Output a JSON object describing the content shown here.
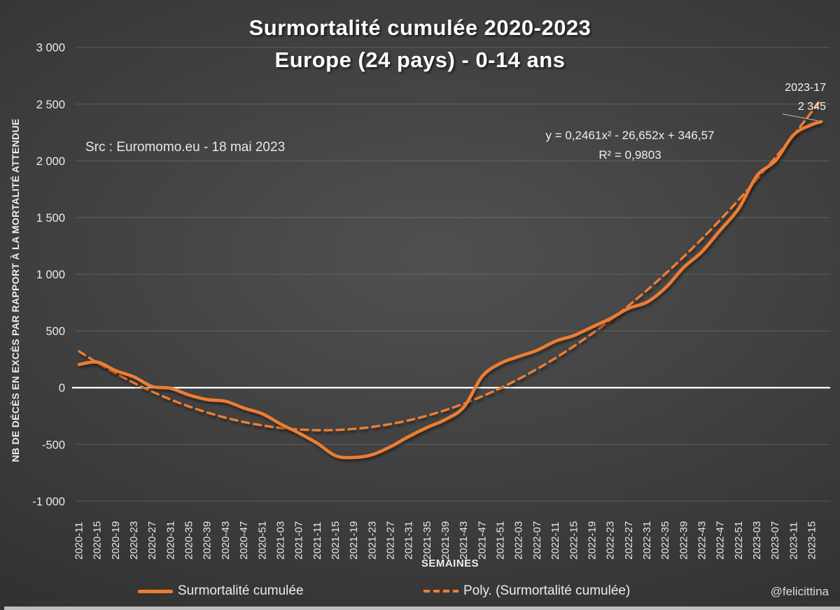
{
  "title": {
    "line1": "Surmortalité cumulée 2020-2023",
    "line2": "Europe (24 pays) - 0-14 ans"
  },
  "source_note": "Src : Euromomo.eu  - 18 mai 2023",
  "equation": {
    "line1": "y = 0,2461x² - 26,652x + 346,57",
    "line2": "R² = 0,9803"
  },
  "annotation": {
    "week": "2023-17",
    "value": "2 345"
  },
  "watermark": "@felicittina",
  "axes": {
    "y_title": "NB DE DÉCÈS EN EXCÈS PAR RAPPORT À LA MORTALITÉ ATTENDUE",
    "x_title": "SEMAINES",
    "y_tick_labels": [
      "3 000",
      "2 500",
      "2 000",
      "1 500",
      "1 000",
      "500",
      "0",
      "-500",
      "-1 000"
    ],
    "y_tick_values": [
      3000,
      2500,
      2000,
      1500,
      1000,
      500,
      0,
      -500,
      -1000
    ]
  },
  "legend": [
    {
      "label": "Surmortalité cumulée",
      "style": "solid"
    },
    {
      "label": "Poly. (Surmortalité cumulée)",
      "style": "dashed"
    }
  ],
  "colors": {
    "series": "#ED7D31",
    "zero_line": "#FFFFFF",
    "grid": "rgba(255,255,255,0.16)",
    "text": "#F2F2F2",
    "background_center": "#505050",
    "background_edge": "#262626"
  },
  "chart_data": {
    "type": "line",
    "title": "Surmortalité cumulée 2020-2023 — Europe (24 pays) - 0-14 ans",
    "xlabel": "SEMAINES",
    "ylabel": "NB DE DÉCÈS EN EXCÈS PAR RAPPORT À LA MORTALITÉ ATTENDUE",
    "ylim": [
      -1000,
      3000
    ],
    "grid": true,
    "legend_position": "bottom",
    "x_tick_step_weeks": 4,
    "categories": [
      "2020-11",
      "2020-15",
      "2020-19",
      "2020-23",
      "2020-27",
      "2020-31",
      "2020-35",
      "2020-39",
      "2020-43",
      "2020-47",
      "2020-51",
      "2021-03",
      "2021-07",
      "2021-11",
      "2021-15",
      "2021-19",
      "2021-23",
      "2021-27",
      "2021-31",
      "2021-35",
      "2021-39",
      "2021-43",
      "2021-47",
      "2021-51",
      "2022-03",
      "2022-07",
      "2022-11",
      "2022-15",
      "2022-19",
      "2022-23",
      "2022-27",
      "2022-31",
      "2022-35",
      "2022-39",
      "2022-43",
      "2022-47",
      "2022-51",
      "2023-03",
      "2023-07",
      "2023-11",
      "2023-15"
    ],
    "series": [
      {
        "name": "Surmortalité cumulée",
        "style": "solid",
        "values": [
          205,
          225,
          150,
          95,
          10,
          -5,
          -65,
          -105,
          -120,
          -180,
          -230,
          -320,
          -400,
          -490,
          -600,
          -615,
          -590,
          -520,
          -430,
          -350,
          -280,
          -170,
          100,
          215,
          275,
          330,
          410,
          460,
          535,
          610,
          700,
          755,
          880,
          1060,
          1200,
          1390,
          1580,
          1870,
          2000,
          2230,
          2320
        ]
      },
      {
        "name": "Poly. (Surmortalité cumulée)",
        "style": "dashed",
        "trendline": {
          "kind": "polynomial_order2",
          "a": 0.2461,
          "b": -26.652,
          "c": 346.57,
          "r2": 0.9803,
          "x_definition": "week index starting at 1 for week 2020-11"
        }
      }
    ],
    "end_point": {
      "week": "2023-17",
      "value": 2345,
      "week_index_from_start": 162
    }
  }
}
